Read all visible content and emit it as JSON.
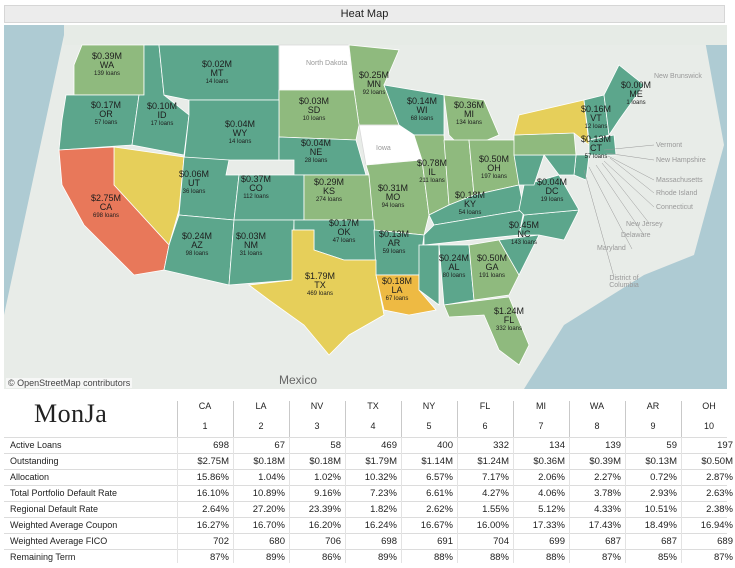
{
  "title": "Heat Map",
  "map": {
    "attribution": "© OpenStreetMap contributors",
    "country_label": "Mexico",
    "states": [
      {
        "id": "WA",
        "amount": "$0.39M",
        "loans": "139 loans"
      },
      {
        "id": "MT",
        "amount": "$0.02M",
        "loans": "14 loans"
      },
      {
        "id": "OR",
        "amount": "$0.17M",
        "loans": "57 loans"
      },
      {
        "id": "ID",
        "amount": "$0.10M",
        "loans": "17 loans"
      },
      {
        "id": "WY",
        "amount": "$0.04M",
        "loans": "14 loans"
      },
      {
        "id": "MN",
        "amount": "$0.25M",
        "loans": "92 loans"
      },
      {
        "id": "SD",
        "amount": "$0.03M",
        "loans": "10 loans"
      },
      {
        "id": "WI",
        "amount": "$0.14M",
        "loans": "68 loans"
      },
      {
        "id": "MI",
        "amount": "$0.36M",
        "loans": "134 loans"
      },
      {
        "id": "ME",
        "amount": "$0.00M",
        "loans": "1 loans"
      },
      {
        "id": "VT",
        "amount": "$0.16M",
        "loans": "12 loans"
      },
      {
        "id": "CT",
        "amount": "$0.13M",
        "loans": "57 loans"
      },
      {
        "id": "NE",
        "amount": "$0.04M",
        "loans": "28 loans"
      },
      {
        "id": "UT",
        "amount": "$0.06M",
        "loans": "36 loans"
      },
      {
        "id": "CO",
        "amount": "$0.37M",
        "loans": "112 loans"
      },
      {
        "id": "KS",
        "amount": "$0.29M",
        "loans": "274 loans"
      },
      {
        "id": "IL",
        "amount": "$0.78M",
        "loans": "211 loans"
      },
      {
        "id": "OH",
        "amount": "$0.50M",
        "loans": "197 loans"
      },
      {
        "id": "MO",
        "amount": "$0.31M",
        "loans": "94 loans"
      },
      {
        "id": "KY",
        "amount": "$0.18M",
        "loans": "54 loans"
      },
      {
        "id": "DC",
        "amount": "$0.04M",
        "loans": "19 loans"
      },
      {
        "id": "CA",
        "amount": "$2.75M",
        "loans": "698 loans"
      },
      {
        "id": "AZ",
        "amount": "$0.24M",
        "loans": "98 loans"
      },
      {
        "id": "NM",
        "amount": "$0.03M",
        "loans": "31 loans"
      },
      {
        "id": "OK",
        "amount": "$0.17M",
        "loans": "47 loans"
      },
      {
        "id": "AR",
        "amount": "$0.13M",
        "loans": "59 loans"
      },
      {
        "id": "NC",
        "amount": "$0.45M",
        "loans": "143 loans"
      },
      {
        "id": "TX",
        "amount": "$1.79M",
        "loans": "469 loans"
      },
      {
        "id": "LA",
        "amount": "$0.18M",
        "loans": "67 loans"
      },
      {
        "id": "AL",
        "amount": "$0.24M",
        "loans": "80 loans"
      },
      {
        "id": "GA",
        "amount": "$0.50M",
        "loans": "191 loans"
      },
      {
        "id": "FL",
        "amount": "$1.24M",
        "loans": "332 loans"
      }
    ],
    "minor_labels": [
      "North Dakota",
      "Iowa",
      "New Brunswick",
      "Vermont",
      "New Hampshire",
      "Massachusetts",
      "Rhode Island",
      "Connecticut",
      "New Jersey",
      "Delaware",
      "Maryland",
      "District of Columbia"
    ],
    "colors": {
      "high": "#e8785a",
      "mid_high": "#e6cf5a",
      "orange": "#eeba43",
      "teal": "#5ca68c",
      "green": "#8fba7e",
      "light": "#a7c48a"
    }
  },
  "table": {
    "logo": "MonJa",
    "columns": [
      {
        "state": "CA",
        "rank": "1"
      },
      {
        "state": "LA",
        "rank": "2"
      },
      {
        "state": "NV",
        "rank": "3"
      },
      {
        "state": "TX",
        "rank": "4"
      },
      {
        "state": "NY",
        "rank": "5"
      },
      {
        "state": "FL",
        "rank": "6"
      },
      {
        "state": "MI",
        "rank": "7"
      },
      {
        "state": "WA",
        "rank": "8"
      },
      {
        "state": "AR",
        "rank": "9"
      },
      {
        "state": "OH",
        "rank": "10"
      }
    ],
    "rows": [
      {
        "label": "Active Loans",
        "values": [
          "698",
          "67",
          "58",
          "469",
          "400",
          "332",
          "134",
          "139",
          "59",
          "197"
        ]
      },
      {
        "label": "Outstanding",
        "values": [
          "$2.75M",
          "$0.18M",
          "$0.18M",
          "$1.79M",
          "$1.14M",
          "$1.24M",
          "$0.36M",
          "$0.39M",
          "$0.13M",
          "$0.50M"
        ]
      },
      {
        "label": "Allocation",
        "values": [
          "15.86%",
          "1.04%",
          "1.02%",
          "10.32%",
          "6.57%",
          "7.17%",
          "2.06%",
          "2.27%",
          "0.72%",
          "2.87%"
        ]
      },
      {
        "label": "Total Portfolio Default Rate",
        "values": [
          "16.10%",
          "10.89%",
          "9.16%",
          "7.23%",
          "6.61%",
          "4.27%",
          "4.06%",
          "3.78%",
          "2.93%",
          "2.63%"
        ]
      },
      {
        "label": "Regional Default Rate",
        "values": [
          "2.64%",
          "27.20%",
          "23.39%",
          "1.82%",
          "2.62%",
          "1.55%",
          "5.12%",
          "4.33%",
          "10.51%",
          "2.38%"
        ]
      },
      {
        "label": "Weighted Average Coupon",
        "values": [
          "16.27%",
          "16.70%",
          "16.20%",
          "16.24%",
          "16.67%",
          "16.00%",
          "17.33%",
          "17.43%",
          "18.49%",
          "16.94%"
        ]
      },
      {
        "label": "Weighted Average FICO",
        "values": [
          "702",
          "680",
          "706",
          "698",
          "691",
          "704",
          "699",
          "687",
          "687",
          "689"
        ]
      },
      {
        "label": "Remaining Term",
        "values": [
          "87%",
          "89%",
          "86%",
          "89%",
          "88%",
          "88%",
          "88%",
          "87%",
          "85%",
          "87%"
        ]
      }
    ]
  }
}
